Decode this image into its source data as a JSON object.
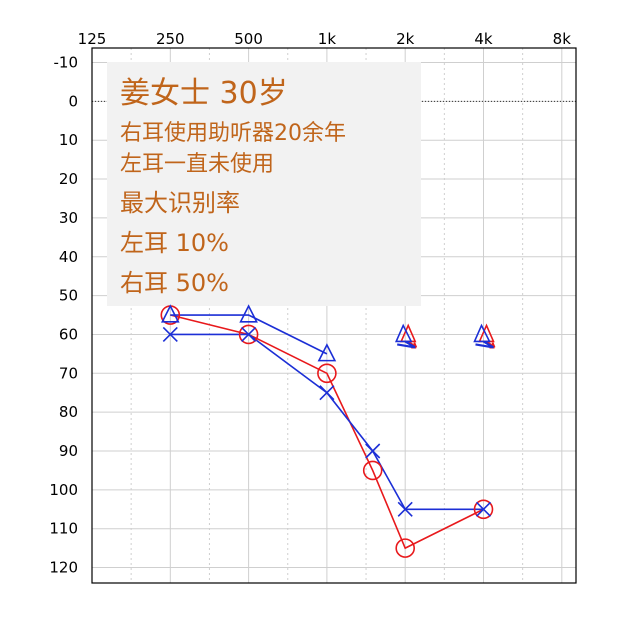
{
  "chart_data": {
    "type": "scatter",
    "x_axis": {
      "ticks": [
        "125",
        "250",
        "500",
        "1k",
        "2k",
        "4k",
        "8k"
      ],
      "values_hz": [
        125,
        250,
        500,
        1000,
        2000,
        4000,
        8000
      ],
      "scale": "log2",
      "position": "top"
    },
    "y_axis": {
      "ticks": [
        "-10",
        "0",
        "10",
        "20",
        "30",
        "40",
        "50",
        "60",
        "70",
        "80",
        "90",
        "100",
        "110",
        "120"
      ],
      "range": [
        -10,
        120
      ],
      "inverted": true
    },
    "grid": true,
    "reference_line_y": 0,
    "annotation": [
      "姜女士  30岁",
      "右耳使用助听器20余年",
      "左耳一直未使用",
      " 最大识别率",
      "左耳 10%",
      "右耳 50%"
    ],
    "series": [
      {
        "color": "#e8191c",
        "marker": "circle",
        "x": [
          250,
          500,
          1000,
          1500,
          2000,
          4000
        ],
        "y": [
          55,
          60,
          70,
          95,
          115,
          105
        ]
      },
      {
        "color": "#1c2fd6",
        "marker": "x",
        "x": [
          250,
          500,
          1000,
          1500,
          2000,
          4000
        ],
        "y": [
          60,
          60,
          75,
          90,
          105,
          105
        ]
      },
      {
        "color": "#1c2fd6",
        "marker": "triangle",
        "x": [
          250,
          500,
          1000
        ],
        "y": [
          55,
          55,
          65
        ]
      }
    ],
    "no_response_markers": [
      {
        "x": 2000,
        "y": 60
      },
      {
        "x": 4000,
        "y": 60
      }
    ]
  }
}
